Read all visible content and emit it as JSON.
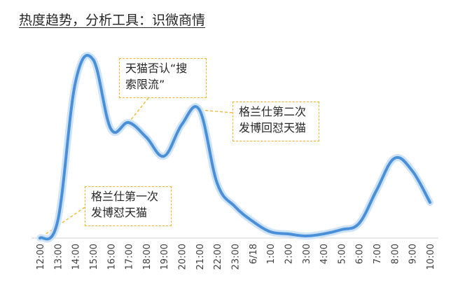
{
  "chart_data": {
    "type": "line",
    "title": "热度趋势，分析工具：识微商情",
    "x": [
      "12:00",
      "13:00",
      "14:00",
      "15:00",
      "16:00",
      "17:00",
      "18:00",
      "19:00",
      "20:00",
      "21:00",
      "22:00",
      "23:00",
      "6/18",
      "1:00",
      "2:00",
      "3:00",
      "4:00",
      "5:00",
      "6:00",
      "7:00",
      "8:00",
      "9:00",
      "10:00"
    ],
    "values": [
      0.0,
      8.0,
      74.0,
      85.0,
      52.0,
      55.0,
      48.0,
      39.0,
      54.0,
      61.0,
      26.0,
      15.0,
      8.0,
      3.0,
      2.0,
      1.0,
      2.0,
      4.0,
      7.0,
      23.0,
      38.0,
      32.0,
      17.0
    ],
    "ylim": [
      0,
      100
    ],
    "grid": false,
    "line_color": "#4a90d9",
    "glow_color": "#cfe3f7",
    "annotations": [
      {
        "lines": [
          "格兰仕第一次",
          "发博怼天猫"
        ],
        "x": "12:00"
      },
      {
        "lines": [
          "天猫否认“搜",
          "索限流”"
        ],
        "x": "17:00"
      },
      {
        "lines": [
          "格兰仕第二次",
          "发博回怼天猫"
        ],
        "x": "21:00"
      }
    ],
    "annotation_border_color": "#f0b429"
  }
}
